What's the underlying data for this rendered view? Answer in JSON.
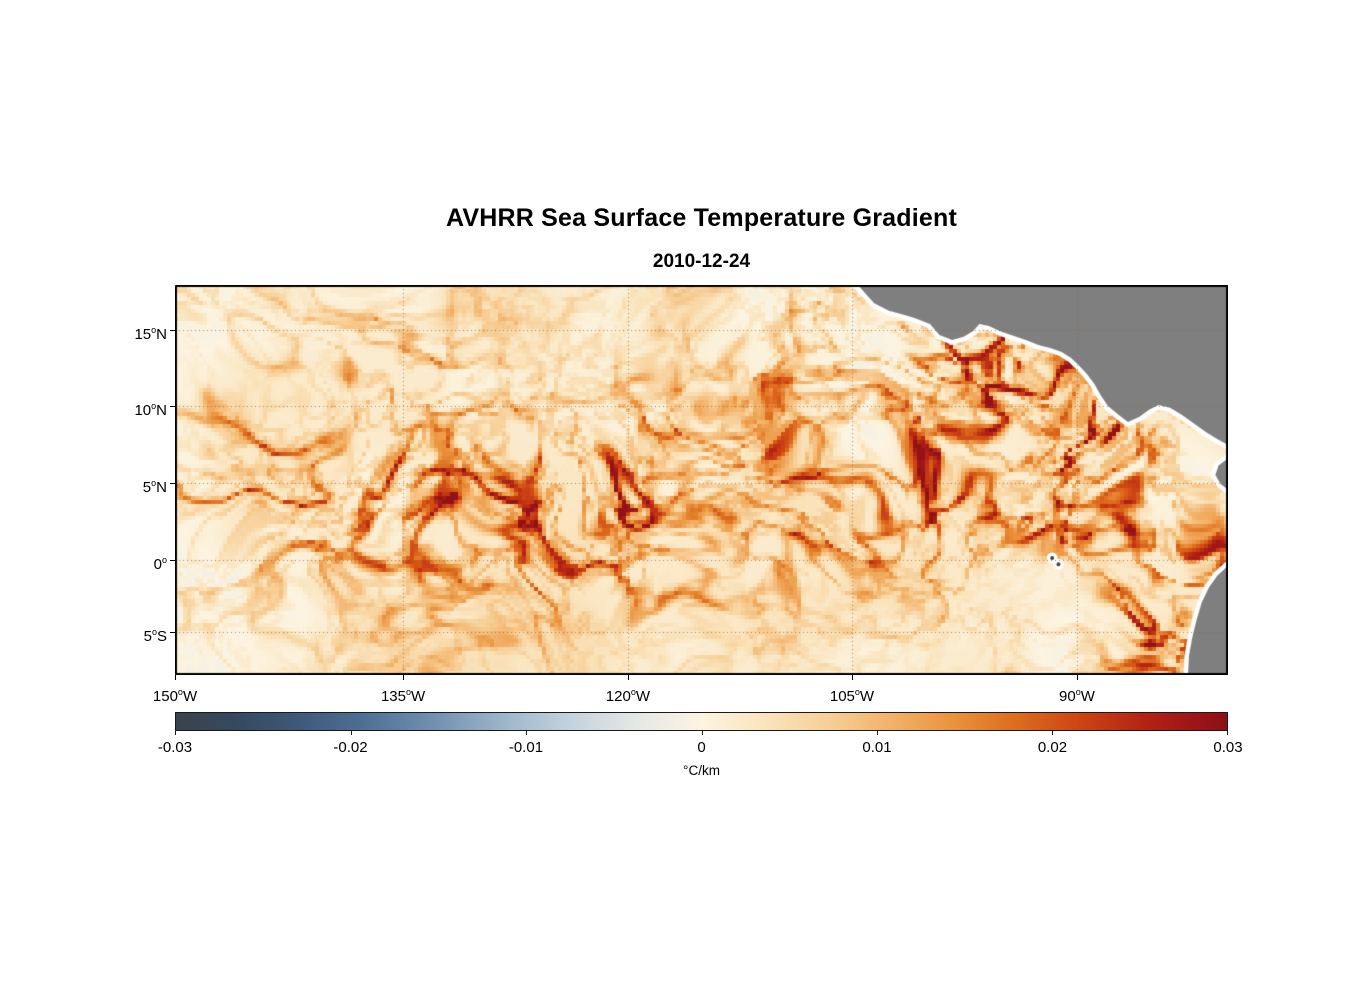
{
  "chart_data": {
    "type": "heatmap",
    "title": "AVHRR Sea Surface Temperature Gradient",
    "subtitle": "2010-12-24",
    "description": "Satellite raster of sea-surface temperature gradient magnitude over the eastern tropical Pacific; filamentary fronts of 0.005-0.03 C/km over a near-zero background, with gray land masses of Central and South America.",
    "degree_symbol": "o",
    "lon_range_west": [
      150,
      80
    ],
    "lat_range": [
      -7.8,
      17.9
    ],
    "grid": "dotted",
    "x_ticks": [
      {
        "deg": "150",
        "hem": "W",
        "u": 0.0
      },
      {
        "deg": "135",
        "hem": "W",
        "u": 0.2166
      },
      {
        "deg": "120",
        "hem": "W",
        "u": 0.4301
      },
      {
        "deg": "105",
        "hem": "W",
        "u": 0.6429
      },
      {
        "deg": "90",
        "hem": "W",
        "u": 0.8566
      }
    ],
    "y_ticks": [
      {
        "deg": "15",
        "hem": "N",
        "v": 0.115
      },
      {
        "deg": "10",
        "hem": "N",
        "v": 0.31
      },
      {
        "deg": "5",
        "hem": "N",
        "v": 0.508
      },
      {
        "deg": "0",
        "hem": "",
        "v": 0.705
      },
      {
        "deg": "5",
        "hem": "S",
        "v": 0.89
      }
    ],
    "colorbar": {
      "label": "°C/km",
      "min": -0.03,
      "max": 0.03,
      "ticks": [
        {
          "label": "-0.03",
          "p": 0.0
        },
        {
          "label": "-0.02",
          "p": 0.1667
        },
        {
          "label": "-0.01",
          "p": 0.3333
        },
        {
          "label": "0",
          "p": 0.5
        },
        {
          "label": "0.01",
          "p": 0.6667
        },
        {
          "label": "0.02",
          "p": 0.8333
        },
        {
          "label": "0.03",
          "p": 1.0
        }
      ],
      "stops": [
        {
          "p": 0.0,
          "c": "#3a424d"
        },
        {
          "p": 0.06,
          "c": "#364960"
        },
        {
          "p": 0.12,
          "c": "#3f5a7b"
        },
        {
          "p": 0.18,
          "c": "#4e7096"
        },
        {
          "p": 0.25,
          "c": "#7493b2"
        },
        {
          "p": 0.32,
          "c": "#a3bacd"
        },
        {
          "p": 0.38,
          "c": "#c6d4de"
        },
        {
          "p": 0.44,
          "c": "#e6e8e4"
        },
        {
          "p": 0.5,
          "c": "#fcf4e1"
        },
        {
          "p": 0.56,
          "c": "#fae4bd"
        },
        {
          "p": 0.62,
          "c": "#f7cf97"
        },
        {
          "p": 0.68,
          "c": "#f2b269"
        },
        {
          "p": 0.74,
          "c": "#ea923c"
        },
        {
          "p": 0.8,
          "c": "#dd6c1d"
        },
        {
          "p": 0.86,
          "c": "#cd4413"
        },
        {
          "p": 0.92,
          "c": "#b52413"
        },
        {
          "p": 0.97,
          "c": "#9c1418"
        },
        {
          "p": 1.0,
          "c": "#8c1015"
        }
      ]
    },
    "colors": {
      "ocean_background": "#fcf3e2",
      "land": "#7f7f7f",
      "coast_margin": "#ffffff",
      "frame": "#000000",
      "grid": "rgba(140,100,70,0.75)"
    },
    "features": {
      "equatorial_band": {
        "v": 0.6,
        "width": 0.17,
        "base": 0.55,
        "amp": 0.85
      },
      "hotspots": [
        {
          "u": 0.77,
          "v": 0.12,
          "r": 0.075,
          "s": 2.6
        },
        {
          "u": 0.86,
          "v": 0.32,
          "r": 0.06,
          "s": 1.6
        },
        {
          "u": 0.93,
          "v": 0.42,
          "r": 0.05,
          "s": 1.5
        },
        {
          "u": 0.67,
          "v": 0.57,
          "r": 0.1,
          "s": 1.2
        },
        {
          "u": 0.5,
          "v": 0.6,
          "r": 0.1,
          "s": 1.0
        },
        {
          "u": 0.27,
          "v": 0.52,
          "r": 0.09,
          "s": 0.8
        },
        {
          "u": 0.97,
          "v": 0.88,
          "r": 0.07,
          "s": 2.0
        },
        {
          "u": 0.99,
          "v": 0.55,
          "r": 0.05,
          "s": 1.4
        },
        {
          "u": 0.06,
          "v": 0.42,
          "r": 0.05,
          "s": 1.0
        },
        {
          "u": 0.42,
          "v": 0.5,
          "r": 0.08,
          "s": 0.9
        },
        {
          "u": 0.22,
          "v": 0.18,
          "r": 0.07,
          "s": 0.7
        },
        {
          "u": 0.58,
          "v": 0.25,
          "r": 0.07,
          "s": 0.6
        }
      ],
      "land": [
        {
          "name": "central-america",
          "points": [
            [
              0.6486,
              0
            ],
            [
              0.655,
              0.02
            ],
            [
              0.664,
              0.047
            ],
            [
              0.678,
              0.066
            ],
            [
              0.693,
              0.077
            ],
            [
              0.703,
              0.085
            ],
            [
              0.717,
              0.1
            ],
            [
              0.726,
              0.128
            ],
            [
              0.738,
              0.141
            ],
            [
              0.749,
              0.133
            ],
            [
              0.758,
              0.118
            ],
            [
              0.764,
              0.1
            ],
            [
              0.773,
              0.105
            ],
            [
              0.783,
              0.118
            ],
            [
              0.794,
              0.128
            ],
            [
              0.808,
              0.141
            ],
            [
              0.82,
              0.154
            ],
            [
              0.832,
              0.162
            ],
            [
              0.842,
              0.172
            ],
            [
              0.851,
              0.187
            ],
            [
              0.858,
              0.205
            ],
            [
              0.866,
              0.228
            ],
            [
              0.873,
              0.253
            ],
            [
              0.879,
              0.282
            ],
            [
              0.886,
              0.31
            ],
            [
              0.896,
              0.333
            ],
            [
              0.905,
              0.351
            ],
            [
              0.916,
              0.338
            ],
            [
              0.925,
              0.32
            ],
            [
              0.934,
              0.308
            ],
            [
              0.945,
              0.315
            ],
            [
              0.956,
              0.333
            ],
            [
              0.968,
              0.356
            ],
            [
              0.98,
              0.379
            ],
            [
              0.991,
              0.397
            ],
            [
              1.0,
              0.41
            ],
            [
              1.0,
              0
            ]
          ]
        },
        {
          "name": "south-america-north",
          "points": [
            [
              1.0,
              0.445
            ],
            [
              0.991,
              0.463
            ],
            [
              0.988,
              0.487
            ],
            [
              0.993,
              0.51
            ],
            [
              1.0,
              0.525
            ]
          ]
        },
        {
          "name": "south-america",
          "points": [
            [
              1.0,
              0.72
            ],
            [
              0.99,
              0.745
            ],
            [
              0.982,
              0.775
            ],
            [
              0.975,
              0.815
            ],
            [
              0.97,
              0.86
            ],
            [
              0.966,
              0.905
            ],
            [
              0.963,
              0.95
            ],
            [
              0.962,
              1.0
            ],
            [
              1.0,
              1.0
            ]
          ]
        }
      ],
      "islands": [
        {
          "name": "galapagos",
          "u": 0.833,
          "v": 0.7
        },
        {
          "name": "galapagos-2",
          "u": 0.839,
          "v": 0.716
        }
      ]
    }
  }
}
